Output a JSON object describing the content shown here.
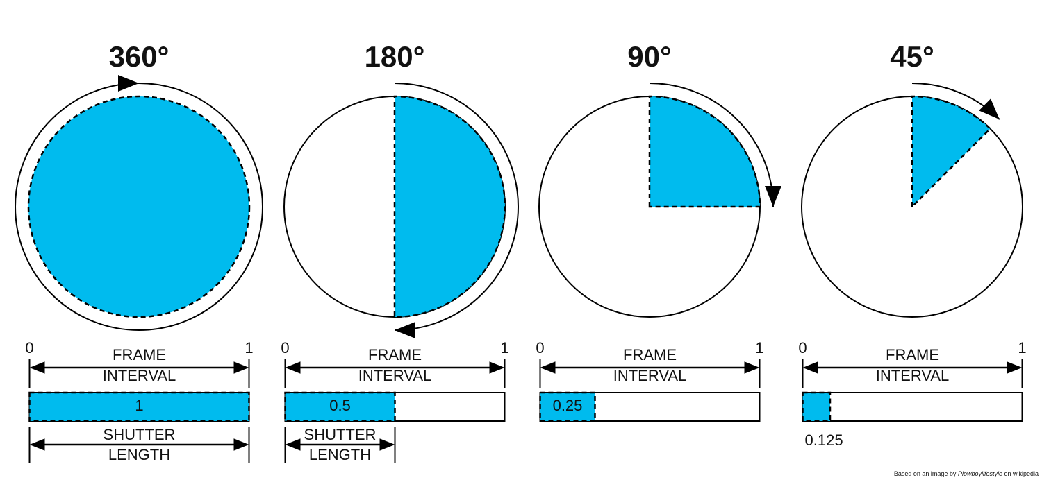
{
  "panels": [
    {
      "title": "360°",
      "fraction": 1,
      "scale_start": 0,
      "scale_end": 1,
      "frame_label": [
        "FRAME",
        "INTERVAL"
      ],
      "shutter_label": [
        "SHUTTER",
        "LENGTH"
      ]
    },
    {
      "title": "180°",
      "fraction": 0.5,
      "scale_start": 0,
      "scale_end": 1,
      "frame_label": [
        "FRAME",
        "INTERVAL"
      ],
      "shutter_label": [
        "SHUTTER",
        "LENGTH"
      ]
    },
    {
      "title": "90°",
      "fraction": 0.25,
      "scale_start": 0,
      "scale_end": 1,
      "frame_label": [
        "FRAME",
        "INTERVAL"
      ]
    },
    {
      "title": "45°",
      "fraction": 0.125,
      "scale_start": 0,
      "scale_end": 1,
      "frame_label": [
        "FRAME",
        "INTERVAL"
      ]
    }
  ],
  "credit": {
    "prefix": "Based on an image by ",
    "author": "Plowboylifestyle",
    "suffix": " on wikipedia"
  }
}
